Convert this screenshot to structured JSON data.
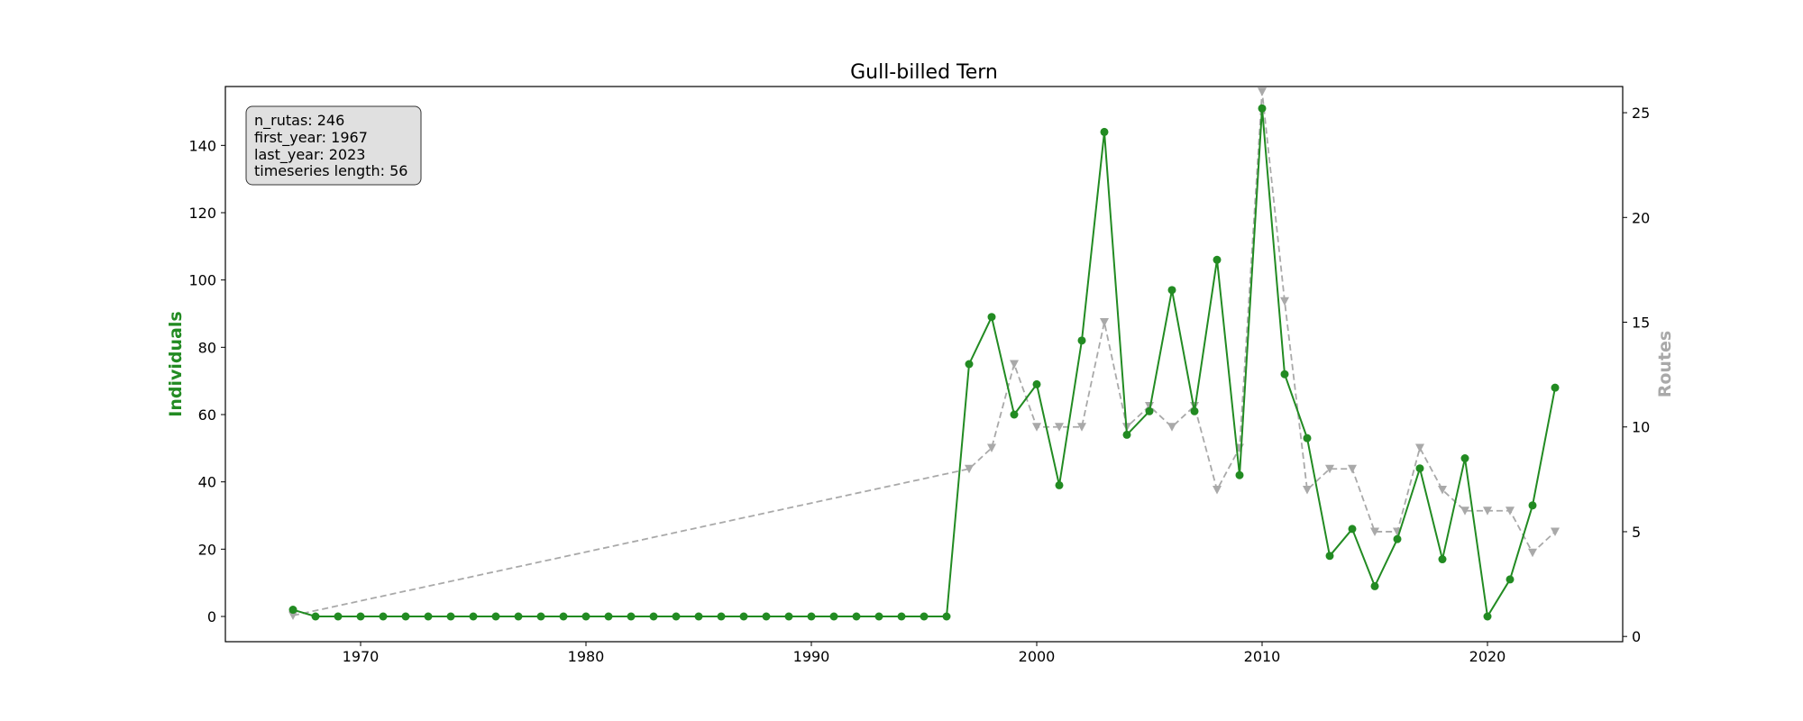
{
  "chart_data": {
    "type": "line",
    "title": "Gull-billed Tern",
    "xlabel": "",
    "ylabel_left": "Individuals",
    "ylabel_right": "Routes",
    "xlim": [
      1964,
      2026
    ],
    "ylim_left": [
      -7.5,
      157.5
    ],
    "ylim_right": [
      -0.25,
      26.25
    ],
    "x_ticks": [
      1970,
      1980,
      1990,
      2000,
      2010,
      2020
    ],
    "y_left_ticks": [
      0,
      20,
      40,
      60,
      80,
      100,
      120,
      140
    ],
    "y_right_ticks": [
      0,
      5,
      10,
      15,
      20,
      25
    ],
    "grid": false,
    "colors": {
      "individuals": "#228b22",
      "routes": "#a9a9a9"
    },
    "info_box": [
      "n_rutas: 246",
      "first_year: 1967",
      "last_year: 2023",
      "timeseries length: 56"
    ],
    "series": [
      {
        "axis": "left",
        "marker": "circle",
        "style": "solid",
        "points": [
          [
            1967,
            2
          ],
          [
            1968,
            0
          ],
          [
            1969,
            0
          ],
          [
            1970,
            0
          ],
          [
            1971,
            0
          ],
          [
            1972,
            0
          ],
          [
            1973,
            0
          ],
          [
            1974,
            0
          ],
          [
            1975,
            0
          ],
          [
            1976,
            0
          ],
          [
            1977,
            0
          ],
          [
            1978,
            0
          ],
          [
            1979,
            0
          ],
          [
            1980,
            0
          ],
          [
            1981,
            0
          ],
          [
            1982,
            0
          ],
          [
            1983,
            0
          ],
          [
            1984,
            0
          ],
          [
            1985,
            0
          ],
          [
            1986,
            0
          ],
          [
            1987,
            0
          ],
          [
            1988,
            0
          ],
          [
            1989,
            0
          ],
          [
            1990,
            0
          ],
          [
            1991,
            0
          ],
          [
            1992,
            0
          ],
          [
            1993,
            0
          ],
          [
            1994,
            0
          ],
          [
            1995,
            0
          ],
          [
            1996,
            0
          ],
          [
            1997,
            75
          ],
          [
            1998,
            89
          ],
          [
            1999,
            60
          ],
          [
            2000,
            69
          ],
          [
            2001,
            39
          ],
          [
            2002,
            82
          ],
          [
            2003,
            144
          ],
          [
            2004,
            54
          ],
          [
            2005,
            61
          ],
          [
            2006,
            97
          ],
          [
            2007,
            61
          ],
          [
            2008,
            106
          ],
          [
            2009,
            42
          ],
          [
            2010,
            151
          ],
          [
            2011,
            72
          ],
          [
            2012,
            53
          ],
          [
            2013,
            18
          ],
          [
            2014,
            26
          ],
          [
            2015,
            9
          ],
          [
            2016,
            23
          ],
          [
            2017,
            44
          ],
          [
            2018,
            17
          ],
          [
            2019,
            47
          ],
          [
            2020,
            0
          ],
          [
            2021,
            11
          ],
          [
            2022,
            33
          ],
          [
            2023,
            68
          ]
        ]
      },
      {
        "axis": "right",
        "marker": "triangle-down",
        "style": "dashed",
        "points": [
          [
            1967,
            1
          ],
          [
            1997,
            8
          ],
          [
            1998,
            9
          ],
          [
            1999,
            13
          ],
          [
            2000,
            10
          ],
          [
            2001,
            10
          ],
          [
            2002,
            10
          ],
          [
            2003,
            15
          ],
          [
            2004,
            10
          ],
          [
            2005,
            11
          ],
          [
            2006,
            10
          ],
          [
            2007,
            11
          ],
          [
            2008,
            7
          ],
          [
            2009,
            9
          ],
          [
            2010,
            26
          ],
          [
            2011,
            16
          ],
          [
            2012,
            7
          ],
          [
            2013,
            8
          ],
          [
            2014,
            8
          ],
          [
            2015,
            5
          ],
          [
            2016,
            5
          ],
          [
            2017,
            9
          ],
          [
            2018,
            7
          ],
          [
            2019,
            6
          ],
          [
            2020,
            6
          ],
          [
            2021,
            6
          ],
          [
            2022,
            4
          ],
          [
            2023,
            5
          ]
        ]
      }
    ]
  }
}
